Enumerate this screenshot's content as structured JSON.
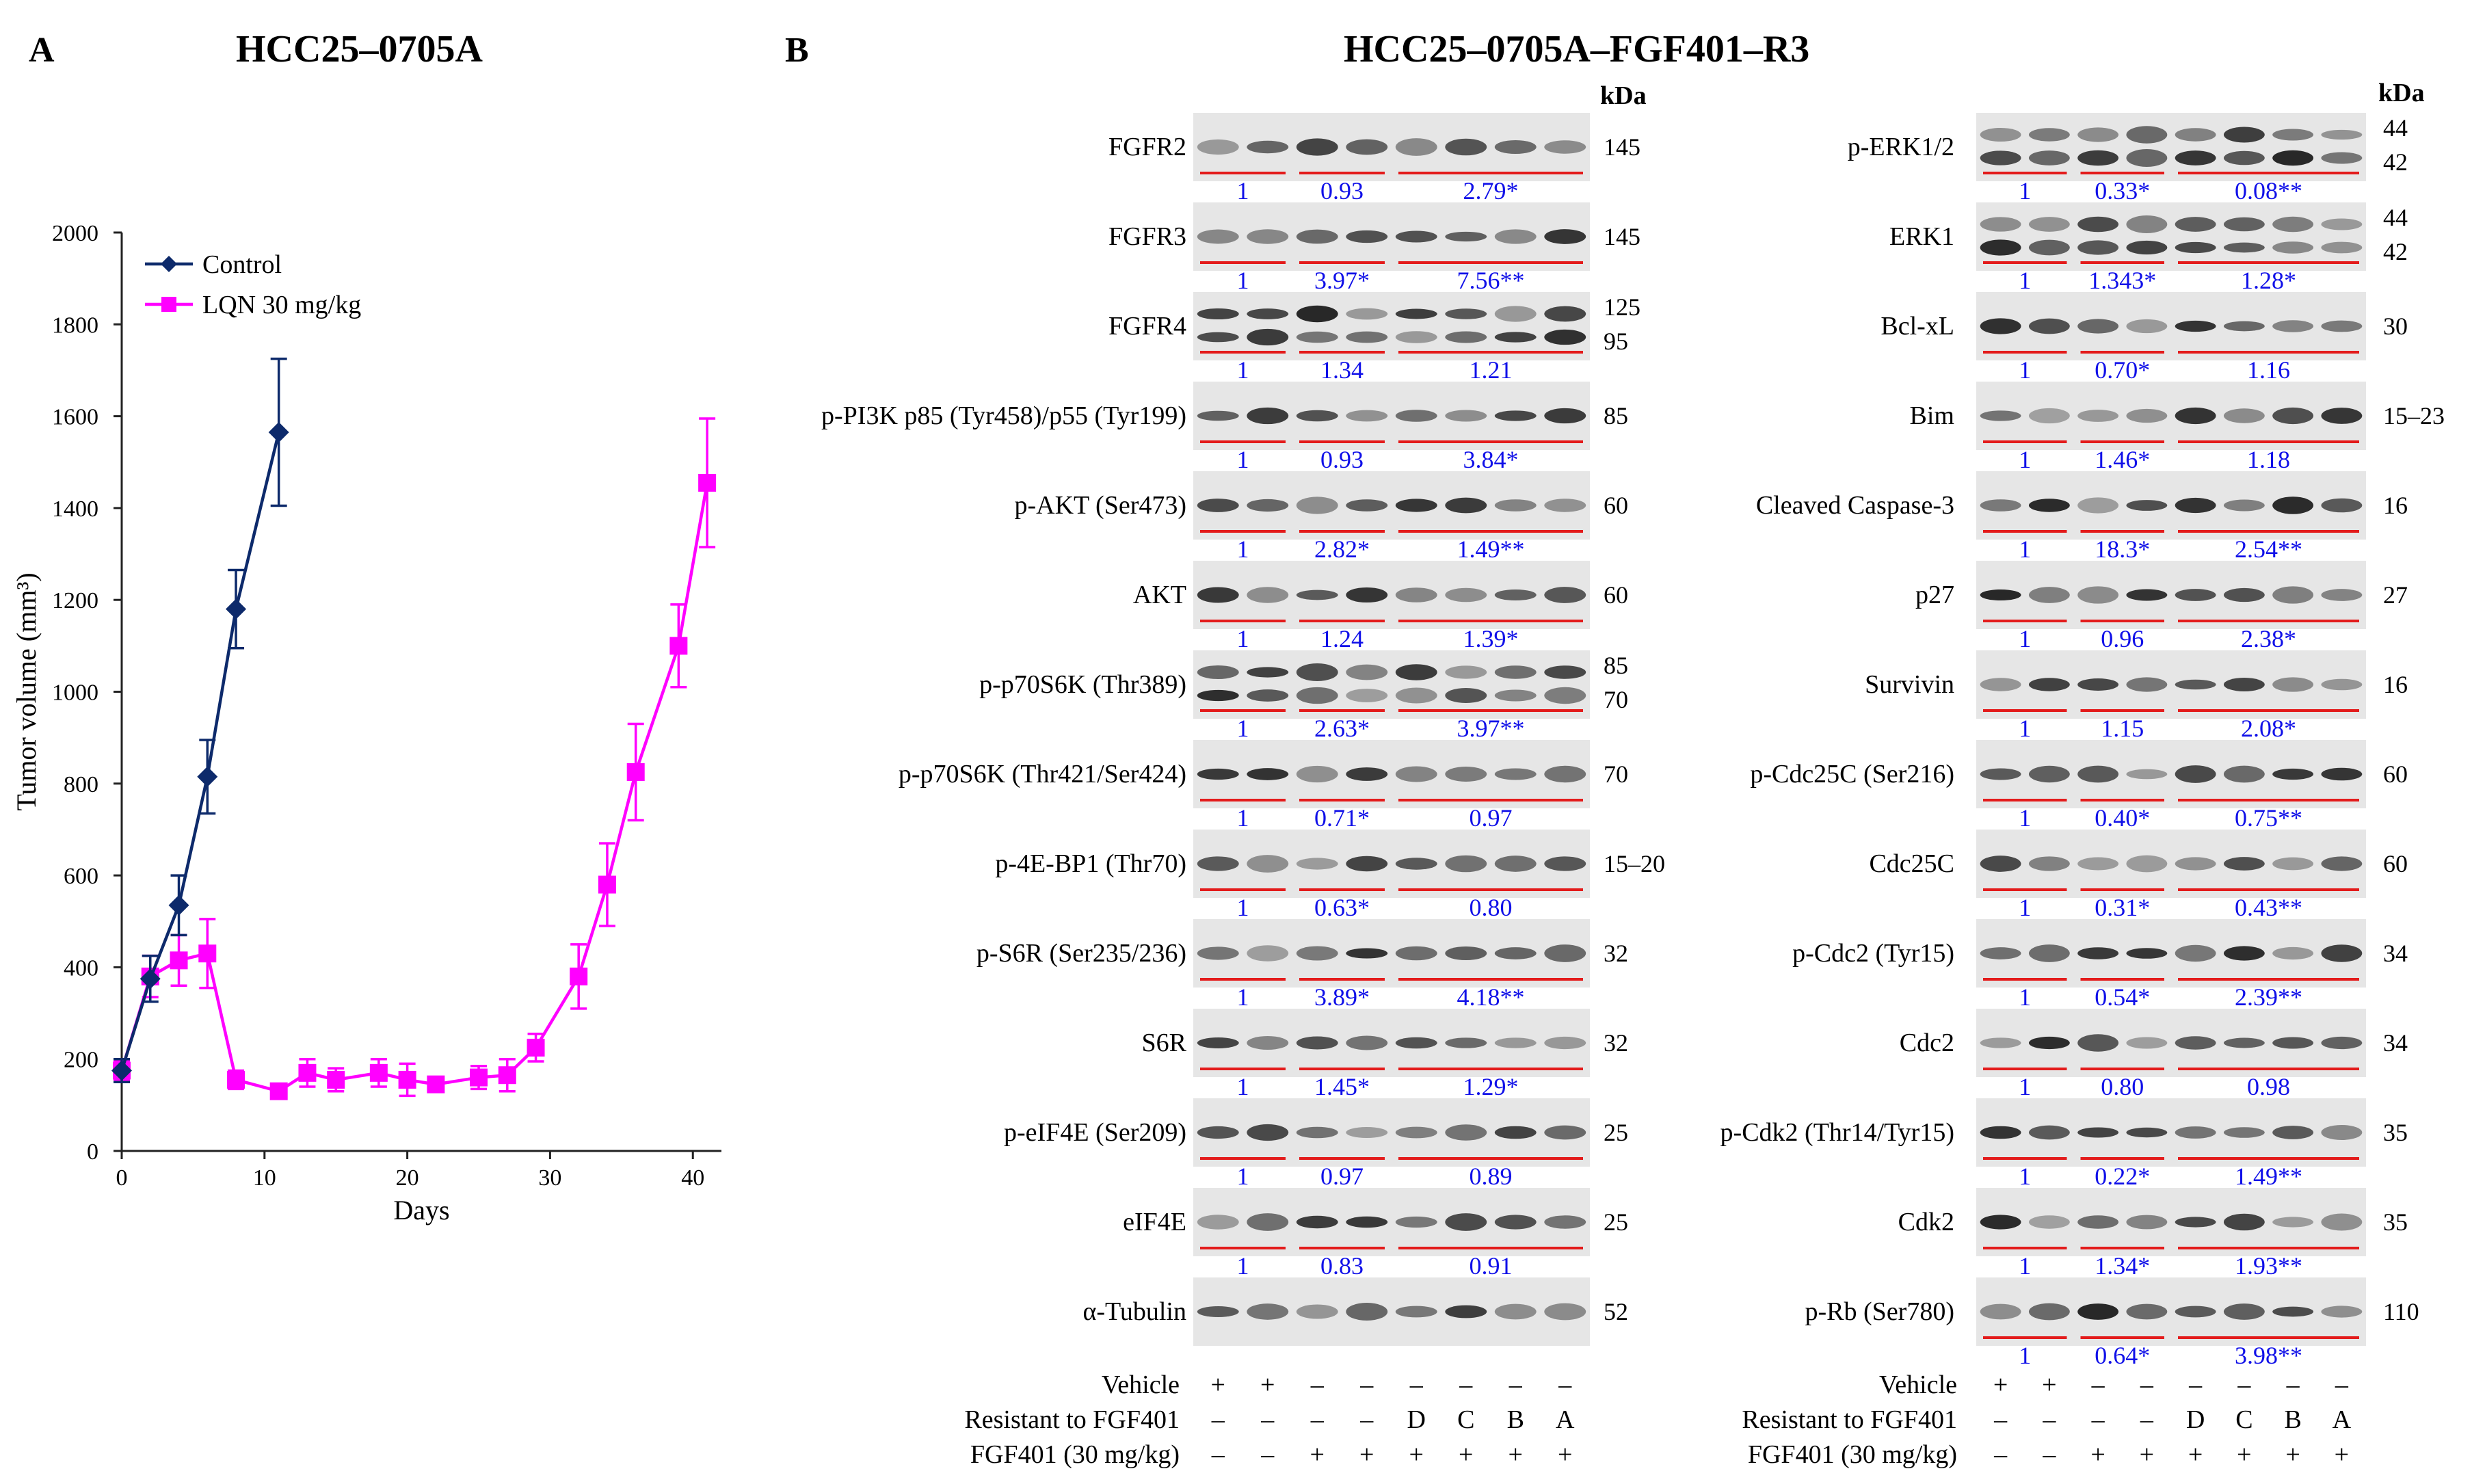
{
  "panel_a": {
    "letter": "A",
    "title": "HCC25–0705A"
  },
  "panel_b": {
    "letter": "B",
    "title": "HCC25–0705A–FGF401–R3",
    "kda_label": "kDa"
  },
  "chart_data": {
    "type": "line",
    "xlabel": "Days",
    "ylabel": "Tumor volume (mm³)",
    "xlim": [
      0,
      42
    ],
    "ylim": [
      0,
      2000
    ],
    "xticks": [
      0,
      10,
      20,
      30,
      40
    ],
    "yticks": [
      0,
      200,
      400,
      600,
      800,
      1000,
      1200,
      1400,
      1600,
      1800,
      2000
    ],
    "grid": false,
    "legend_position": "top-left",
    "series": [
      {
        "name": "Control",
        "color": "#0d2a6b",
        "marker": "diamond",
        "x": [
          0,
          2,
          4,
          6,
          8,
          11
        ],
        "y": [
          175,
          375,
          535,
          815,
          1180,
          1565
        ],
        "err": [
          25,
          50,
          65,
          80,
          85,
          160
        ]
      },
      {
        "name": "LQN 30 mg/kg",
        "color": "#ff00ff",
        "marker": "square",
        "x": [
          0,
          2,
          4,
          6,
          8,
          11,
          13,
          15,
          18,
          20,
          22,
          25,
          27,
          29,
          32,
          34,
          36,
          39,
          41
        ],
        "y": [
          175,
          380,
          415,
          430,
          155,
          130,
          170,
          155,
          170,
          155,
          145,
          160,
          165,
          225,
          380,
          580,
          825,
          1100,
          1455
        ],
        "err": [
          20,
          45,
          55,
          75,
          20,
          15,
          30,
          25,
          30,
          35,
          15,
          25,
          35,
          30,
          70,
          90,
          105,
          90,
          140
        ]
      }
    ]
  },
  "blots_left": [
    {
      "label": "FGFR2",
      "kda": [
        "145"
      ],
      "q": [
        "1",
        "0.93",
        "2.79*"
      ]
    },
    {
      "label": "FGFR3",
      "kda": [
        "145"
      ],
      "q": [
        "1",
        "3.97*",
        "7.56**"
      ]
    },
    {
      "label": "FGFR4",
      "kda": [
        "125",
        "95"
      ],
      "q": [
        "1",
        "1.34",
        "1.21"
      ]
    },
    {
      "label": "p-PI3K p85 (Tyr458)/p55 (Tyr199)",
      "kda": [
        "85"
      ],
      "q": [
        "1",
        "0.93",
        "3.84*"
      ]
    },
    {
      "label": "p-AKT (Ser473)",
      "kda": [
        "60"
      ],
      "q": [
        "1",
        "2.82*",
        "1.49**"
      ]
    },
    {
      "label": "AKT",
      "kda": [
        "60"
      ],
      "q": [
        "1",
        "1.24",
        "1.39*"
      ]
    },
    {
      "label": "p-p70S6K (Thr389)",
      "kda": [
        "85",
        "70"
      ],
      "q": [
        "1",
        "2.63*",
        "3.97**"
      ]
    },
    {
      "label": "p-p70S6K (Thr421/Ser424)",
      "kda": [
        "70"
      ],
      "q": [
        "1",
        "0.71*",
        "0.97"
      ]
    },
    {
      "label": "p-4E-BP1 (Thr70)",
      "kda": [
        "15–20"
      ],
      "q": [
        "1",
        "0.63*",
        "0.80"
      ]
    },
    {
      "label": "p-S6R (Ser235/236)",
      "kda": [
        "32"
      ],
      "q": [
        "1",
        "3.89*",
        "4.18**"
      ]
    },
    {
      "label": "S6R",
      "kda": [
        "32"
      ],
      "q": [
        "1",
        "1.45*",
        "1.29*"
      ]
    },
    {
      "label": "p-eIF4E (Ser209)",
      "kda": [
        "25"
      ],
      "q": [
        "1",
        "0.97",
        "0.89"
      ]
    },
    {
      "label": "eIF4E",
      "kda": [
        "25"
      ],
      "q": [
        "1",
        "0.83",
        "0.91"
      ]
    },
    {
      "label": "α-Tubulin",
      "kda": [
        "52"
      ],
      "q": []
    }
  ],
  "blots_right": [
    {
      "label": "p-ERK1/2",
      "kda": [
        "44",
        "42"
      ],
      "q": [
        "1",
        "0.33*",
        "0.08**"
      ]
    },
    {
      "label": "ERK1",
      "kda": [
        "44",
        "42"
      ],
      "q": [
        "1",
        "1.343*",
        "1.28*"
      ]
    },
    {
      "label": "Bcl-xL",
      "kda": [
        "30"
      ],
      "q": [
        "1",
        "0.70*",
        "1.16"
      ]
    },
    {
      "label": "Bim",
      "kda": [
        "15–23"
      ],
      "q": [
        "1",
        "1.46*",
        "1.18"
      ]
    },
    {
      "label": "Cleaved Caspase-3",
      "kda": [
        "16"
      ],
      "q": [
        "1",
        "18.3*",
        "2.54**"
      ]
    },
    {
      "label": "p27",
      "kda": [
        "27"
      ],
      "q": [
        "1",
        "0.96",
        "2.38*"
      ]
    },
    {
      "label": "Survivin",
      "kda": [
        "16"
      ],
      "q": [
        "1",
        "1.15",
        "2.08*"
      ]
    },
    {
      "label": "p-Cdc25C (Ser216)",
      "kda": [
        "60"
      ],
      "q": [
        "1",
        "0.40*",
        "0.75**"
      ]
    },
    {
      "label": "Cdc25C",
      "kda": [
        "60"
      ],
      "q": [
        "1",
        "0.31*",
        "0.43**"
      ]
    },
    {
      "label": "p-Cdc2 (Tyr15)",
      "kda": [
        "34"
      ],
      "q": [
        "1",
        "0.54*",
        "2.39**"
      ]
    },
    {
      "label": "Cdc2",
      "kda": [
        "34"
      ],
      "q": [
        "1",
        "0.80",
        "0.98"
      ]
    },
    {
      "label": "p-Cdk2 (Thr14/Tyr15)",
      "kda": [
        "35"
      ],
      "q": [
        "1",
        "0.22*",
        "1.49**"
      ]
    },
    {
      "label": "Cdk2",
      "kda": [
        "35"
      ],
      "q": [
        "1",
        "1.34*",
        "1.93**"
      ]
    },
    {
      "label": "p-Rb (Ser780)",
      "kda": [
        "110"
      ],
      "q": [
        "1",
        "0.64*",
        "3.98**"
      ]
    }
  ],
  "conditions": [
    {
      "label": "Vehicle",
      "values": [
        "+",
        "+",
        "–",
        "–",
        "–",
        "–",
        "–",
        "–"
      ]
    },
    {
      "label": "Resistant to FGF401",
      "values": [
        "–",
        "–",
        "–",
        "–",
        "D",
        "C",
        "B",
        "A"
      ]
    },
    {
      "label": "FGF401 (30 mg/kg)",
      "values": [
        "–",
        "–",
        "+",
        "+",
        "+",
        "+",
        "+",
        "+"
      ]
    }
  ],
  "colors": {
    "quant_text": "#1010e8",
    "group_line": "#e31b1b",
    "band": "#1c1c1c",
    "membrane": "#e6e6e6"
  }
}
